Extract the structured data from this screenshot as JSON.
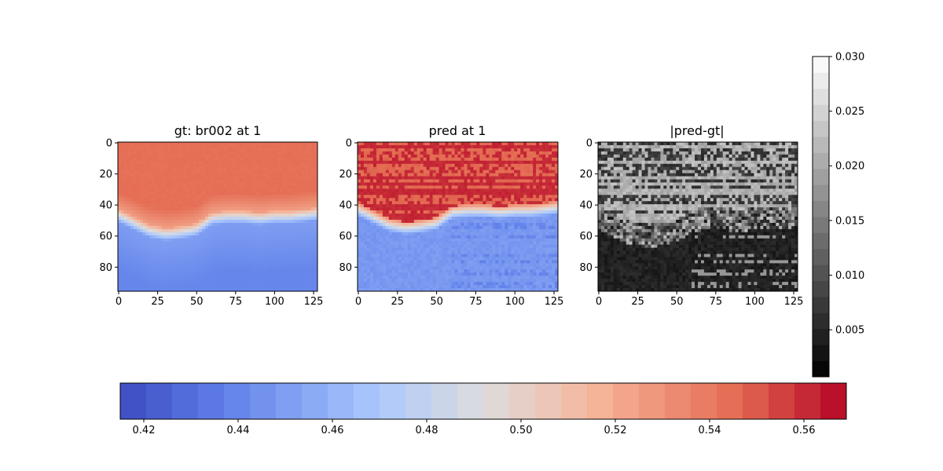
{
  "chart_data": [
    {
      "type": "heatmap",
      "title": "gt: br002 at 1",
      "colormap": "coolwarm",
      "xlim": [
        0,
        127
      ],
      "ylim": [
        95,
        0
      ],
      "xticks": [
        "0",
        "25",
        "50",
        "75",
        "100",
        "125"
      ],
      "yticks": [
        "0",
        "20",
        "40",
        "60",
        "80"
      ],
      "interface_row_by_column": [
        [
          0,
          43
        ],
        [
          10,
          48
        ],
        [
          20,
          53
        ],
        [
          30,
          55
        ],
        [
          40,
          54
        ],
        [
          50,
          52
        ],
        [
          60,
          45
        ],
        [
          70,
          44
        ],
        [
          80,
          44
        ],
        [
          90,
          45
        ],
        [
          100,
          44
        ],
        [
          110,
          44
        ],
        [
          127,
          42
        ]
      ],
      "value_above": 0.545,
      "value_below": 0.445
    },
    {
      "type": "heatmap",
      "title": "pred at 1",
      "colormap": "coolwarm",
      "xlim": [
        0,
        127
      ],
      "ylim": [
        95,
        0
      ],
      "xticks": [
        "0",
        "25",
        "50",
        "75",
        "100",
        "125"
      ],
      "yticks": [
        "0",
        "20",
        "40",
        "60",
        "80"
      ],
      "value_above": 0.565,
      "value_below": 0.445
    },
    {
      "type": "heatmap",
      "title": "|pred-gt|",
      "colormap": "gray",
      "xlim": [
        0,
        127
      ],
      "ylim": [
        95,
        0
      ],
      "xticks": [
        "0",
        "25",
        "50",
        "75",
        "100",
        "125"
      ],
      "yticks": [
        "0",
        "20",
        "40",
        "60",
        "80"
      ],
      "error_above": 0.021,
      "error_below": 0.004
    }
  ],
  "colorbar_main": {
    "orientation": "horizontal",
    "colormap": "coolwarm",
    "range": [
      0.415,
      0.569
    ],
    "ticks": [
      "0.42",
      "0.44",
      "0.46",
      "0.48",
      "0.50",
      "0.52",
      "0.54",
      "0.56"
    ],
    "tick_values": [
      0.42,
      0.44,
      0.46,
      0.48,
      0.5,
      0.52,
      0.54,
      0.56
    ]
  },
  "colorbar_error": {
    "orientation": "vertical",
    "colormap": "gray",
    "range": [
      0.0007,
      0.03
    ],
    "ticks": [
      "0.005",
      "0.010",
      "0.015",
      "0.020",
      "0.025",
      "0.030"
    ],
    "tick_values": [
      0.005,
      0.01,
      0.015,
      0.02,
      0.025,
      0.03
    ]
  },
  "colors": {
    "coolwarm_low": "#3b4cc0",
    "coolwarm_mid": "#dddddd",
    "coolwarm_high": "#b40426"
  }
}
